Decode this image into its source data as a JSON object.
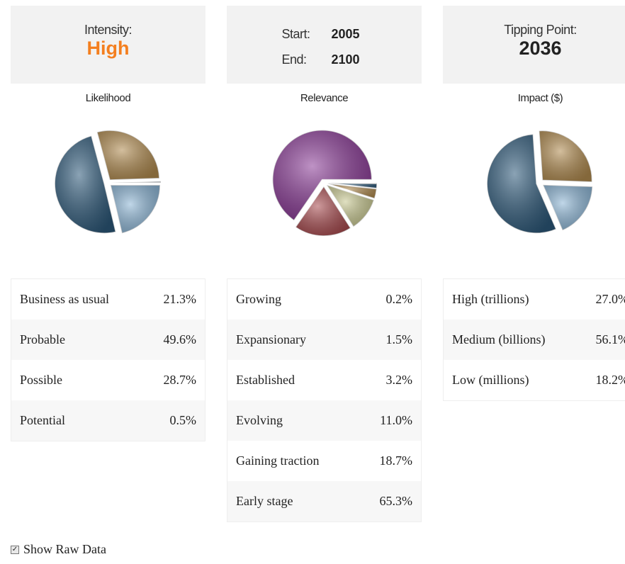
{
  "cards": [
    {
      "label": "Intensity:",
      "value": "High"
    },
    {
      "rows": [
        {
          "label": "Start:",
          "value": "2005"
        },
        {
          "label": "End:",
          "value": "2100"
        }
      ]
    },
    {
      "label": "Tipping Point:",
      "value": "2036"
    }
  ],
  "charts": [
    {
      "type": "pie",
      "title": "Likelihood",
      "categories": [
        "Business as usual",
        "Probable",
        "Possible",
        "Potential"
      ],
      "values": [
        21.3,
        49.6,
        28.7,
        0.5
      ],
      "value_labels": [
        "21.3%",
        "49.6%",
        "28.7%",
        "0.5%"
      ],
      "colors": [
        "#8db6d6",
        "#2c5879",
        "#b08a4e",
        "#c9d3dc"
      ]
    },
    {
      "type": "pie",
      "title": "Relevance",
      "categories": [
        "Growing",
        "Expansionary",
        "Established",
        "Evolving",
        "Gaining traction",
        "Early stage"
      ],
      "values": [
        0.2,
        1.5,
        3.2,
        11.0,
        18.7,
        65.3
      ],
      "value_labels": [
        "0.2%",
        "1.5%",
        "3.2%",
        "11.0%",
        "18.7%",
        "65.3%"
      ],
      "colors": [
        "#9fb8c8",
        "#2c5879",
        "#b08a4e",
        "#c8c890",
        "#a84a4e",
        "#8a3a96"
      ]
    },
    {
      "type": "pie",
      "title": "Impact ($)",
      "categories": [
        "High (trillions)",
        "Medium (billions)",
        "Low (millions)"
      ],
      "values": [
        27.0,
        56.1,
        18.2
      ],
      "value_labels": [
        "27.0%",
        "56.1%",
        "18.2%"
      ],
      "colors": [
        "#b08a4e",
        "#2c5879",
        "#8db6d6"
      ]
    }
  ],
  "checkbox": {
    "label": "Show Raw Data"
  }
}
